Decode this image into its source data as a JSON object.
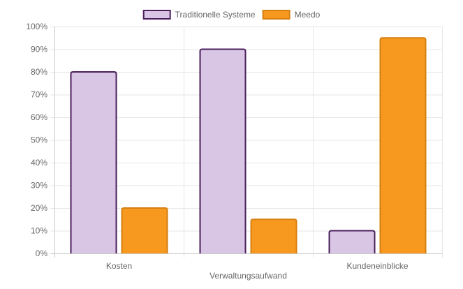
{
  "chart_data": {
    "type": "bar",
    "categories": [
      "Kosten",
      "Verwaltungsaufwand",
      "Kundeneinblicke"
    ],
    "series": [
      {
        "name": "Traditionelle Systeme",
        "values": [
          80,
          90,
          10
        ],
        "fill": "#d8c6e4",
        "stroke": "#4b1f5c"
      },
      {
        "name": "Meedo",
        "values": [
          20,
          15,
          95
        ],
        "fill": "#f7991f",
        "stroke": "#d67f10"
      }
    ],
    "ylim": [
      0,
      100
    ],
    "yticks": [
      "0%",
      "10%",
      "20%",
      "30%",
      "40%",
      "50%",
      "60%",
      "70%",
      "80%",
      "90%",
      "100%"
    ],
    "grid": true,
    "legend_position": "top-center",
    "title": "",
    "xlabel": "",
    "ylabel": ""
  }
}
